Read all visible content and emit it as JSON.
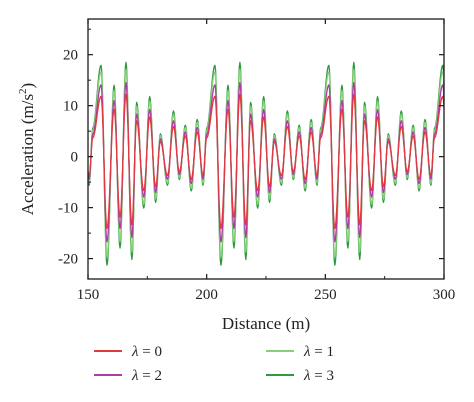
{
  "chart_data": {
    "type": "line",
    "title": "",
    "xlabel": "Distance (m)",
    "ylabel_main": "Acceleration (m/s",
    "ylabel_sup": "2",
    "ylabel_tail": ")",
    "xlim": [
      150,
      300
    ],
    "ylim": [
      -24,
      27
    ],
    "xticks": [
      150,
      200,
      250,
      300
    ],
    "yticks": [
      -20,
      -10,
      0,
      10,
      20
    ],
    "grid": false,
    "legend_position": "bottom",
    "legend_symbol": "λ",
    "colors": {
      "lambda_0": "#e0393e",
      "lambda_1": "#86d07a",
      "lambda_2": "#b03aa6",
      "lambda_3": "#2e9a3e",
      "axis": "#1a1a1a"
    },
    "series": [
      {
        "name": "λ = 0",
        "key": "lambda_0",
        "amplitude_scale": 0.74
      },
      {
        "name": "λ = 1",
        "key": "lambda_1",
        "amplitude_scale": 1.04
      },
      {
        "name": "λ = 2",
        "key": "lambda_2",
        "amplitude_scale": 0.88
      },
      {
        "name": "λ = 3",
        "key": "lambda_3",
        "amplitude_scale": 1.12
      }
    ],
    "signal": {
      "period_m": 48,
      "base_peak_x": [
        155.5,
        161,
        166,
        170.5,
        176,
        180.5,
        186,
        191,
        196,
        200
      ],
      "base_peak_y": [
        16,
        12.5,
        16.5,
        9.5,
        10.5,
        4,
        8,
        5.5,
        6.5,
        5
      ],
      "base_trough_x": [
        158,
        163.5,
        168.5,
        173.5,
        178.5,
        183.5,
        188.5,
        193.5,
        198.5
      ],
      "base_trough_y": [
        -19,
        -16,
        -18,
        -9,
        -8,
        -5,
        -4,
        -6,
        -5
      ]
    }
  },
  "legend": [
    {
      "symbol": "λ",
      "value": "= 0",
      "key": "lambda_0"
    },
    {
      "symbol": "λ",
      "value": "= 1",
      "key": "lambda_1"
    },
    {
      "symbol": "λ",
      "value": "= 2",
      "key": "lambda_2"
    },
    {
      "symbol": "λ",
      "value": "= 3",
      "key": "lambda_3"
    }
  ]
}
